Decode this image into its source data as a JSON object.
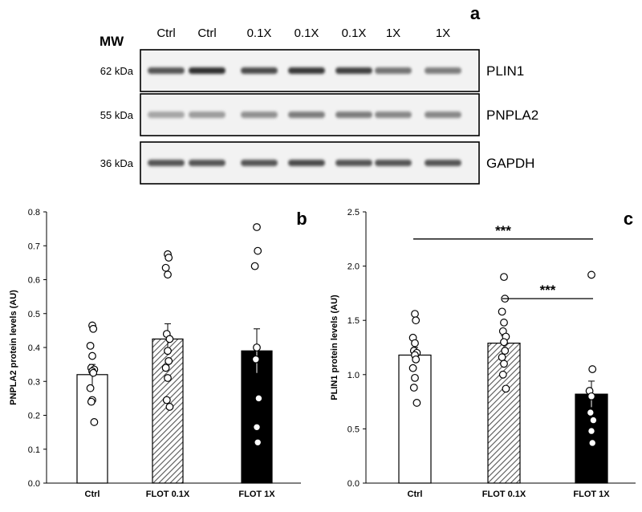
{
  "western_blot": {
    "panel_letter": "a",
    "mw_title": "MW",
    "lanes": [
      "Ctrl",
      "Ctrl",
      "0.1X",
      "0.1X",
      "0.1X",
      "1X",
      "1X"
    ],
    "rows": [
      {
        "mw": "62 kDa",
        "protein": "PLIN1",
        "intensity": [
          0.75,
          0.95,
          0.8,
          0.9,
          0.85,
          0.6,
          0.55
        ]
      },
      {
        "mw": "55 kDa",
        "protein": "PNPLA2",
        "intensity": [
          0.35,
          0.4,
          0.45,
          0.55,
          0.55,
          0.5,
          0.5
        ]
      },
      {
        "mw": "36 kDa",
        "protein": "GAPDH",
        "intensity": [
          0.75,
          0.75,
          0.75,
          0.8,
          0.75,
          0.75,
          0.75
        ]
      }
    ]
  },
  "chart_data": [
    {
      "type": "bar",
      "panel_letter": "b",
      "ylabel": "PNPLA2 protein levels (AU)",
      "xlabel": "",
      "ylim": [
        0,
        0.8
      ],
      "yticks": [
        "0.0",
        "0.1",
        "0.2",
        "0.3",
        "0.4",
        "0.5",
        "0.6",
        "0.7",
        "0.8"
      ],
      "ytick_values": [
        0,
        0.1,
        0.2,
        0.3,
        0.4,
        0.5,
        0.6,
        0.7,
        0.8
      ],
      "categories": [
        "Ctrl",
        "FLOT 0.1X",
        "FLOT 1X"
      ],
      "values": [
        0.32,
        0.425,
        0.39
      ],
      "errors": [
        0.03,
        0.045,
        0.065
      ],
      "fills": [
        "white",
        "hatch",
        "black"
      ],
      "points": [
        [
          0.465,
          0.455,
          0.405,
          0.375,
          0.34,
          0.335,
          0.33,
          0.325,
          0.28,
          0.245,
          0.24,
          0.18
        ],
        [
          0.675,
          0.665,
          0.635,
          0.615,
          0.44,
          0.425,
          0.39,
          0.36,
          0.34,
          0.31,
          0.245,
          0.225
        ],
        [
          0.755,
          0.685,
          0.64,
          0.4,
          0.365,
          0.25,
          0.165,
          0.12
        ]
      ],
      "significance": []
    },
    {
      "type": "bar",
      "panel_letter": "c",
      "ylabel": "PLIN1 protein levels (AU)",
      "xlabel": "",
      "ylim": [
        0,
        2.5
      ],
      "yticks": [
        "0.0",
        "0.5",
        "1.0",
        "1.5",
        "2.0",
        "2.5"
      ],
      "ytick_values": [
        0,
        0.5,
        1.0,
        1.5,
        2.0,
        2.5
      ],
      "categories": [
        "Ctrl",
        "FLOT 0.1X",
        "FLOT 1X"
      ],
      "values": [
        1.18,
        1.29,
        0.82
      ],
      "errors": [
        0.07,
        0.07,
        0.12
      ],
      "fills": [
        "white",
        "hatch",
        "black"
      ],
      "points": [
        [
          1.56,
          1.5,
          1.34,
          1.29,
          1.22,
          1.2,
          1.18,
          1.14,
          1.06,
          0.97,
          0.88,
          0.74
        ],
        [
          1.9,
          1.7,
          1.58,
          1.48,
          1.4,
          1.35,
          1.3,
          1.22,
          1.16,
          1.1,
          1.0,
          0.87
        ],
        [
          1.92,
          1.05,
          0.85,
          0.8,
          0.65,
          0.58,
          0.48,
          0.37
        ]
      ],
      "significance": [
        {
          "from": 0,
          "to": 2,
          "y": 2.25,
          "label": "***"
        },
        {
          "from": 1,
          "to": 2,
          "y": 1.7,
          "label": "***"
        }
      ]
    }
  ]
}
